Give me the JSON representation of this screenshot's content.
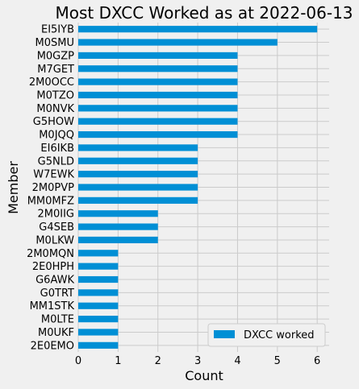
{
  "chart_data": {
    "type": "bar",
    "orientation": "horizontal",
    "title": "Most DXCC Worked as at 2022-06-13",
    "xlabel": "Count",
    "ylabel": "Member",
    "xlim": [
      0,
      6.3
    ],
    "xticks": [
      0,
      1,
      2,
      3,
      4,
      5,
      6
    ],
    "grid": true,
    "legend_position": "bottom-right",
    "bar_color": "#008fd5",
    "categories": [
      "EI5IYB",
      "M0SMU",
      "M0GZP",
      "M7GET",
      "2M0OCC",
      "M0TZO",
      "M0NVK",
      "G5HOW",
      "M0JQQ",
      "EI6IKB",
      "G5NLD",
      "W7EWK",
      "2M0PVP",
      "MM0MFZ",
      "2M0IIG",
      "G4SEB",
      "M0LKW",
      "2M0MQN",
      "2E0HPH",
      "G6AWK",
      "G0TRT",
      "MM1STK",
      "M0LTE",
      "M0UKF",
      "2E0EMO"
    ],
    "series": [
      {
        "name": "DXCC worked",
        "values": [
          6,
          5,
          4,
          4,
          4,
          4,
          4,
          4,
          4,
          3,
          3,
          3,
          3,
          3,
          2,
          2,
          2,
          1,
          1,
          1,
          1,
          1,
          1,
          1,
          1
        ]
      }
    ]
  }
}
